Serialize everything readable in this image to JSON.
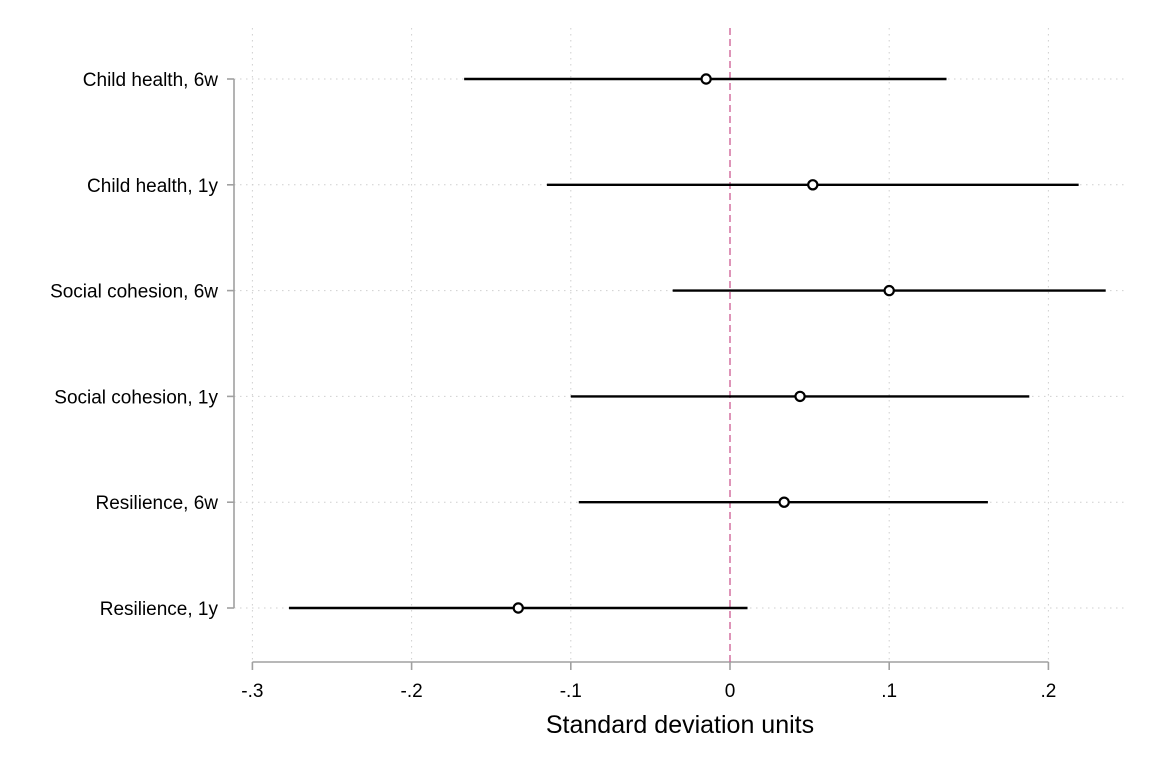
{
  "chart_data": {
    "type": "scatter",
    "subtype": "coefficient-plot",
    "title": "",
    "xlabel": "Standard deviation units",
    "ylabel": "",
    "xlim": [
      -0.3,
      0.23
    ],
    "x_ticks": [
      -0.3,
      -0.2,
      -0.1,
      0,
      0.1,
      0.2
    ],
    "x_tick_labels": [
      "-.3",
      "-.2",
      "-.1",
      "0",
      ".1",
      ".2"
    ],
    "grid": true,
    "reference_line": {
      "x": 0,
      "style": "dashed",
      "color": "#d0669a"
    },
    "colors": {
      "marker": "#000000",
      "ci_line": "#000000",
      "grid": "#cfcfcf",
      "axis": "#a0a0a0"
    },
    "categories": [
      "Child health, 6w",
      "Child health, 1y",
      "Social cohesion, 6w",
      "Social cohesion, 1y",
      "Resilience, 6w",
      "Resilience, 1y"
    ],
    "points": [
      {
        "label": "Child health, 6w",
        "estimate": -0.015,
        "ci_low": -0.167,
        "ci_high": 0.136
      },
      {
        "label": "Child health, 1y",
        "estimate": 0.052,
        "ci_low": -0.115,
        "ci_high": 0.219
      },
      {
        "label": "Social cohesion, 6w",
        "estimate": 0.1,
        "ci_low": -0.036,
        "ci_high": 0.236
      },
      {
        "label": "Social cohesion, 1y",
        "estimate": 0.044,
        "ci_low": -0.1,
        "ci_high": 0.188
      },
      {
        "label": "Resilience, 6w",
        "estimate": 0.034,
        "ci_low": -0.095,
        "ci_high": 0.162
      },
      {
        "label": "Resilience, 1y",
        "estimate": -0.133,
        "ci_low": -0.277,
        "ci_high": 0.011
      }
    ]
  }
}
